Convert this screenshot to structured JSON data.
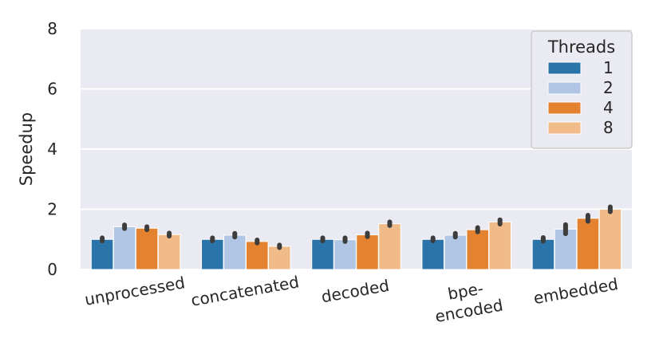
{
  "chart_data": {
    "type": "bar",
    "title": "",
    "xlabel": "",
    "ylabel": "Speedup",
    "ylim": [
      0,
      8
    ],
    "yticks": [
      "0",
      "2",
      "4",
      "6",
      "8"
    ],
    "grid": true,
    "categories": [
      [
        "unprocessed"
      ],
      [
        "concatenated"
      ],
      [
        "decoded"
      ],
      [
        "bpe-",
        "encoded"
      ],
      [
        "embedded"
      ]
    ],
    "legend": {
      "title": "Threads",
      "placement": "top-right"
    },
    "series": [
      {
        "name": "1",
        "color": "#2b74aa",
        "values": [
          1.0,
          1.0,
          1.0,
          1.0,
          1.0
        ],
        "err": [
          0.05,
          0.05,
          0.05,
          0.05,
          0.06
        ]
      },
      {
        "name": "2",
        "color": "#b0c6e4",
        "values": [
          1.42,
          1.14,
          0.99,
          1.14,
          1.34
        ],
        "err": [
          0.06,
          0.06,
          0.06,
          0.06,
          0.15
        ]
      },
      {
        "name": "4",
        "color": "#e5822f",
        "values": [
          1.37,
          0.93,
          1.15,
          1.32,
          1.7
        ],
        "err": [
          0.05,
          0.05,
          0.06,
          0.07,
          0.1
        ]
      },
      {
        "name": "8",
        "color": "#f0bb88",
        "values": [
          1.16,
          0.77,
          1.52,
          1.58,
          2.0
        ],
        "err": [
          0.05,
          0.04,
          0.06,
          0.07,
          0.08
        ]
      }
    ]
  }
}
